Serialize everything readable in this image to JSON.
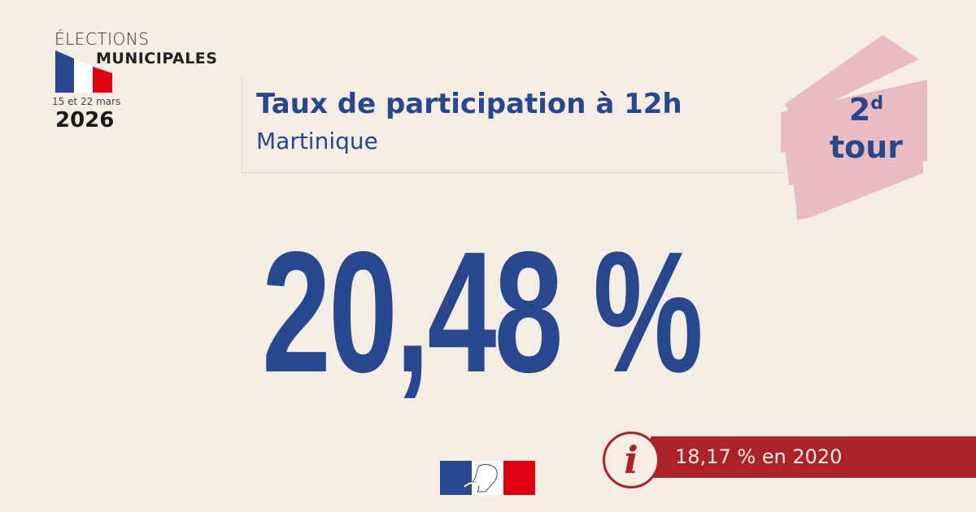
{
  "header": {
    "elections_label": "ÉLECTIONS",
    "municipales_label": "MUNICIPALES",
    "dates": "15 et 22 mars",
    "year": "2026"
  },
  "main": {
    "title": "Taux de participation à 12h",
    "region": "Martinique",
    "rate": "20,48 %"
  },
  "badge": {
    "round_number": "2",
    "round_suffix": "d",
    "round_word": "tour"
  },
  "comparison": {
    "icon": "info-icon",
    "text": "18,17 % en 2020"
  },
  "colors": {
    "background": "#f4ede3",
    "blue": "#27478f",
    "red": "#ab2328",
    "badge_pink": "#e8bcc0"
  }
}
